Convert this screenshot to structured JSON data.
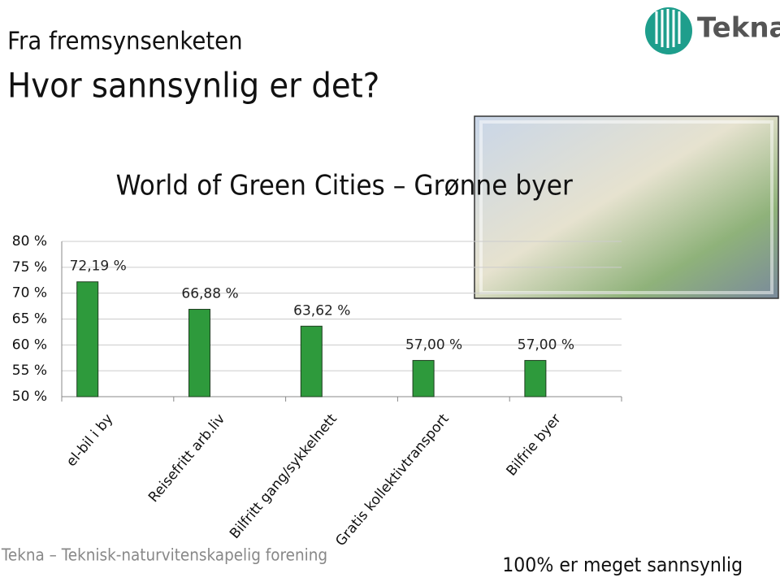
{
  "header": {
    "kicker": "Fra fremsynsenketen",
    "title": "Hvor sannsynlig er det?",
    "logo": "Tekna"
  },
  "footer": {
    "organization": "Tekna – Teknisk-naturvitenskapelig forening",
    "note": "100% er meget sannsynlig"
  },
  "chart_data": {
    "type": "bar",
    "title": "World of Green Cities – Grønne byer",
    "categories": [
      "el-bil i by",
      "Reisefritt arb.liv",
      "Bilfritt gang/sykkelnett",
      "Gratis kollektivtransport",
      "Bilfrie byer"
    ],
    "values": [
      72.19,
      66.88,
      63.62,
      57,
      57
    ],
    "value_labels": [
      "72,19 %",
      "66,88 %",
      "63,62 %",
      "57,00 %",
      "57,00 %"
    ],
    "color": "#2e9a3c",
    "ylim": [
      50,
      80
    ],
    "yticks": [
      {
        "value": 50,
        "label": "50 %"
      },
      {
        "value": 55,
        "label": "55 %"
      },
      {
        "value": 60,
        "label": "60 %"
      },
      {
        "value": 65,
        "label": "65 %"
      },
      {
        "value": 70,
        "label": "70 %"
      },
      {
        "value": 75,
        "label": "75 %"
      },
      {
        "value": 80,
        "label": "80 %"
      }
    ],
    "grid": true
  }
}
